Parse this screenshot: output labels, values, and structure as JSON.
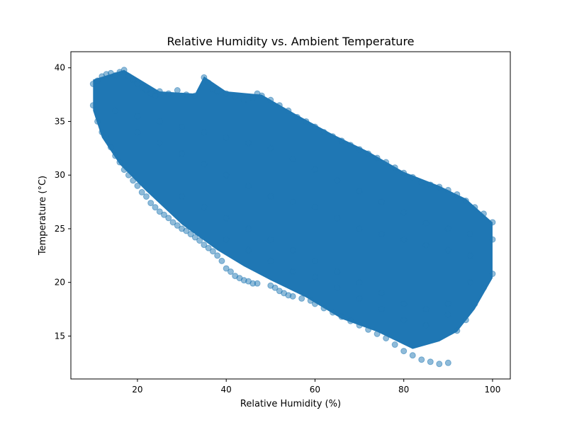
{
  "chart_data": {
    "type": "scatter",
    "title": "Relative Humidity vs. Ambient Temperature",
    "xlabel": "Relative Humidity (%)",
    "ylabel": "Temperature (°C)",
    "xlim": [
      5,
      104
    ],
    "ylim": [
      11,
      41.5
    ],
    "xticks": [
      20,
      40,
      60,
      80,
      100
    ],
    "yticks": [
      15,
      20,
      25,
      30,
      35,
      40
    ],
    "grid": false,
    "legend": "none",
    "point_color": "#1f77b4",
    "point_alpha": 0.5,
    "series": [
      {
        "values_description_omitted": true,
        "points": [
          [
            10,
            38.5
          ],
          [
            11,
            38.8
          ],
          [
            12,
            39.2
          ],
          [
            13,
            39.4
          ],
          [
            14,
            39.5
          ],
          [
            15,
            39.3
          ],
          [
            16,
            39.6
          ],
          [
            17,
            39.8
          ],
          [
            18,
            39.2
          ],
          [
            19,
            38.9
          ],
          [
            20,
            38.5
          ],
          [
            21,
            38.2
          ],
          [
            22,
            37.9
          ],
          [
            23,
            37.6
          ],
          [
            24,
            37.4
          ],
          [
            25,
            37.8
          ],
          [
            27,
            37.6
          ],
          [
            29,
            37.9
          ],
          [
            31,
            37.5
          ],
          [
            33,
            37.4
          ],
          [
            35,
            39.1
          ],
          [
            36,
            38.6
          ],
          [
            37,
            38.0
          ],
          [
            38,
            37.8
          ],
          [
            40,
            37.6
          ],
          [
            42,
            37.3
          ],
          [
            44,
            37.0
          ],
          [
            46,
            37.2
          ],
          [
            47,
            37.6
          ],
          [
            48,
            37.4
          ],
          [
            50,
            37.0
          ],
          [
            52,
            36.5
          ],
          [
            54,
            36.0
          ],
          [
            56,
            35.4
          ],
          [
            58,
            35.0
          ],
          [
            60,
            34.5
          ],
          [
            62,
            34.0
          ],
          [
            64,
            33.6
          ],
          [
            66,
            33.2
          ],
          [
            68,
            32.8
          ],
          [
            70,
            32.4
          ],
          [
            72,
            32.0
          ],
          [
            74,
            31.6
          ],
          [
            76,
            31.2
          ],
          [
            78,
            30.7
          ],
          [
            80,
            30.2
          ],
          [
            82,
            29.8
          ],
          [
            84,
            29.3
          ],
          [
            86,
            29.1
          ],
          [
            88,
            28.9
          ],
          [
            90,
            28.6
          ],
          [
            92,
            28.2
          ],
          [
            94,
            27.6
          ],
          [
            96,
            27.0
          ],
          [
            98,
            26.4
          ],
          [
            100,
            25.6
          ],
          [
            10,
            36.5
          ],
          [
            11,
            35.0
          ],
          [
            12,
            34.0
          ],
          [
            13,
            33.5
          ],
          [
            14,
            32.6
          ],
          [
            15,
            31.8
          ],
          [
            16,
            31.2
          ],
          [
            17,
            30.5
          ],
          [
            18,
            30.0
          ],
          [
            19,
            29.5
          ],
          [
            20,
            29.0
          ],
          [
            21,
            28.4
          ],
          [
            22,
            28.0
          ],
          [
            23,
            27.4
          ],
          [
            24,
            27.0
          ],
          [
            25,
            26.6
          ],
          [
            26,
            26.3
          ],
          [
            27,
            26.0
          ],
          [
            28,
            25.6
          ],
          [
            29,
            25.3
          ],
          [
            30,
            25.0
          ],
          [
            31,
            24.8
          ],
          [
            32,
            24.5
          ],
          [
            33,
            24.2
          ],
          [
            34,
            23.9
          ],
          [
            35,
            23.5
          ],
          [
            36,
            23.2
          ],
          [
            37,
            22.9
          ],
          [
            38,
            22.5
          ],
          [
            39,
            22.0
          ],
          [
            40,
            21.3
          ],
          [
            41,
            21.0
          ],
          [
            42,
            20.6
          ],
          [
            43,
            20.4
          ],
          [
            44,
            20.2
          ],
          [
            45,
            20.1
          ],
          [
            46,
            19.9
          ],
          [
            47,
            19.9
          ],
          [
            50,
            19.7
          ],
          [
            51,
            19.5
          ],
          [
            52,
            19.2
          ],
          [
            53,
            19.0
          ],
          [
            54,
            18.8
          ],
          [
            55,
            18.7
          ],
          [
            57,
            18.5
          ],
          [
            59,
            18.3
          ],
          [
            60,
            18.0
          ],
          [
            62,
            17.6
          ],
          [
            64,
            17.2
          ],
          [
            66,
            16.8
          ],
          [
            68,
            16.4
          ],
          [
            70,
            16.0
          ],
          [
            72,
            15.6
          ],
          [
            74,
            15.2
          ],
          [
            76,
            14.8
          ],
          [
            78,
            14.2
          ],
          [
            80,
            13.6
          ],
          [
            82,
            13.2
          ],
          [
            84,
            12.8
          ],
          [
            86,
            12.6
          ],
          [
            88,
            12.4
          ],
          [
            90,
            12.5
          ],
          [
            92,
            15.5
          ],
          [
            94,
            16.5
          ],
          [
            96,
            18.0
          ],
          [
            98,
            19.5
          ],
          [
            100,
            20.8
          ],
          [
            20,
            34
          ],
          [
            25,
            33
          ],
          [
            30,
            32
          ],
          [
            35,
            31
          ],
          [
            40,
            30
          ],
          [
            45,
            29
          ],
          [
            50,
            28
          ],
          [
            55,
            27.5
          ],
          [
            60,
            27
          ],
          [
            65,
            26
          ],
          [
            70,
            25
          ],
          [
            75,
            24.5
          ],
          [
            80,
            24
          ],
          [
            85,
            23.5
          ],
          [
            90,
            23
          ],
          [
            95,
            22.5
          ],
          [
            15,
            36
          ],
          [
            20,
            35.5
          ],
          [
            25,
            35
          ],
          [
            30,
            34.5
          ],
          [
            35,
            34
          ],
          [
            40,
            33.5
          ],
          [
            45,
            33
          ],
          [
            50,
            32.5
          ],
          [
            55,
            31.5
          ],
          [
            60,
            30.5
          ],
          [
            65,
            29.5
          ],
          [
            70,
            28.5
          ],
          [
            75,
            27.5
          ],
          [
            80,
            26.5
          ],
          [
            85,
            25.5
          ],
          [
            90,
            25
          ],
          [
            95,
            24.5
          ],
          [
            100,
            24
          ],
          [
            30,
            28
          ],
          [
            35,
            27
          ],
          [
            40,
            26
          ],
          [
            45,
            25
          ],
          [
            50,
            24
          ],
          [
            55,
            23
          ],
          [
            60,
            22
          ],
          [
            65,
            21
          ],
          [
            70,
            20
          ],
          [
            75,
            19
          ],
          [
            80,
            18
          ],
          [
            85,
            17.5
          ],
          [
            90,
            17
          ],
          [
            40,
            24
          ],
          [
            45,
            23
          ],
          [
            50,
            22
          ],
          [
            55,
            21
          ],
          [
            60,
            20.5
          ],
          [
            65,
            19.5
          ],
          [
            70,
            18.5
          ],
          [
            75,
            17.5
          ],
          [
            80,
            16.5
          ],
          [
            85,
            16
          ],
          [
            90,
            18
          ],
          [
            95,
            20
          ]
        ]
      }
    ]
  }
}
